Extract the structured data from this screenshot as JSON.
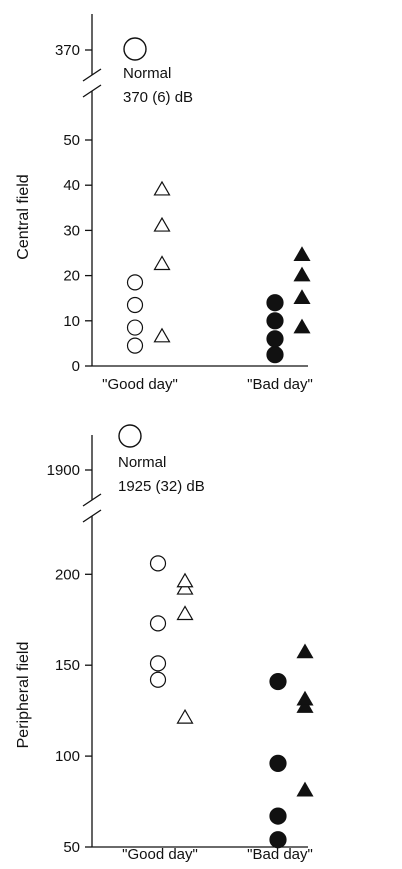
{
  "chart_data": [
    {
      "type": "scatter",
      "ylabel": "Central field",
      "categories": [
        "\"Good day\"",
        "\"Bad day\""
      ],
      "yticks": [
        0,
        10,
        20,
        30,
        40,
        50
      ],
      "ylim": [
        0,
        55
      ],
      "axis_break": true,
      "break_tick": "370",
      "normal": {
        "label": "Normal",
        "value_text": "370 (6) dB",
        "value": 370
      },
      "series": [
        {
          "marker": "open-circle",
          "category": 0,
          "values": [
            4.5,
            8.5,
            13.5,
            18.5
          ]
        },
        {
          "marker": "open-triangle",
          "category": 0,
          "values": [
            6.5,
            22.5,
            31,
            39
          ]
        },
        {
          "marker": "filled-circle",
          "category": 1,
          "values": [
            2.5,
            6,
            10,
            14
          ]
        },
        {
          "marker": "filled-triangle",
          "category": 1,
          "values": [
            8.5,
            15,
            20,
            24.5
          ]
        }
      ]
    },
    {
      "type": "scatter",
      "ylabel": "Peripheral field",
      "categories": [
        "\"Good day\"",
        "\"Bad day\""
      ],
      "yticks": [
        50,
        100,
        150,
        200
      ],
      "ylim": [
        50,
        220
      ],
      "axis_break": true,
      "break_tick": "1900",
      "normal": {
        "label": "Normal",
        "value_text": "1925 (32) dB",
        "value": 1925
      },
      "series": [
        {
          "marker": "open-circle",
          "category": 0,
          "values": [
            142,
            151,
            173,
            206
          ]
        },
        {
          "marker": "open-triangle",
          "category": 0,
          "values": [
            121,
            178,
            192,
            196
          ]
        },
        {
          "marker": "filled-circle",
          "category": 1,
          "values": [
            54,
            67,
            96,
            141
          ]
        },
        {
          "marker": "filled-triangle",
          "category": 1,
          "values": [
            81,
            127,
            131,
            157
          ]
        }
      ]
    }
  ]
}
